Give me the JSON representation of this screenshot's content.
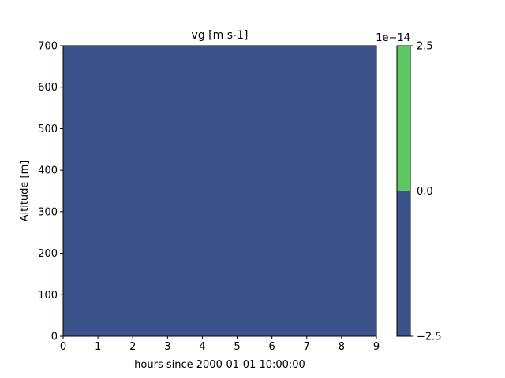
{
  "chart_data": {
    "type": "heatmap",
    "title": "vg [m s-1]",
    "xlabel": "hours since 2000-01-01 10:00:00",
    "ylabel": "Altitude [m]",
    "xlim": [
      0,
      9
    ],
    "ylim": [
      0,
      700
    ],
    "xticks": [
      "0",
      "1",
      "2",
      "3",
      "4",
      "5",
      "6",
      "7",
      "8",
      "9"
    ],
    "yticks": [
      "0",
      "100",
      "200",
      "300",
      "400",
      "500",
      "600",
      "700"
    ],
    "field_value": 0.0,
    "field_color": "#3b528b",
    "colorbar": {
      "levels": [
        -2.5,
        0.0,
        2.5
      ],
      "tick_labels": [
        "−2.5",
        "0.0",
        "2.5"
      ],
      "offset_text": "1e−14",
      "bands": [
        {
          "from": -2.5,
          "to": 0.0,
          "color": "#3b528b"
        },
        {
          "from": 0.0,
          "to": 2.5,
          "color": "#5ec962"
        }
      ]
    }
  }
}
